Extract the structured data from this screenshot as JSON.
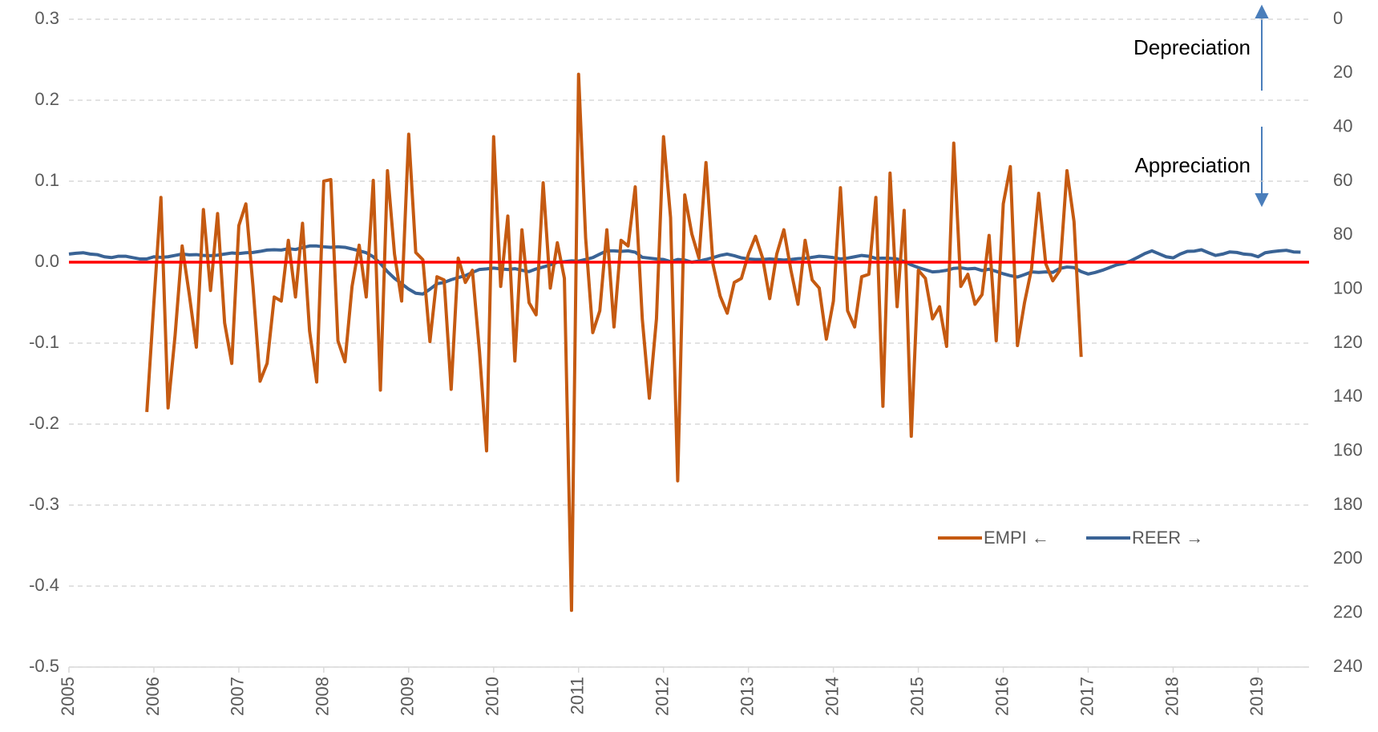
{
  "chart_data": {
    "type": "line",
    "x": [
      2005,
      2005.083,
      2005.167,
      2005.25,
      2005.333,
      2005.417,
      2005.5,
      2005.583,
      2005.667,
      2005.75,
      2005.833,
      2005.917,
      2006,
      2006.083,
      2006.167,
      2006.25,
      2006.333,
      2006.417,
      2006.5,
      2006.583,
      2006.667,
      2006.75,
      2006.833,
      2006.917,
      2007,
      2007.083,
      2007.167,
      2007.25,
      2007.333,
      2007.417,
      2007.5,
      2007.583,
      2007.667,
      2007.75,
      2007.833,
      2007.917,
      2008,
      2008.083,
      2008.167,
      2008.25,
      2008.333,
      2008.417,
      2008.5,
      2008.583,
      2008.667,
      2008.75,
      2008.833,
      2008.917,
      2009,
      2009.083,
      2009.167,
      2009.25,
      2009.333,
      2009.417,
      2009.5,
      2009.583,
      2009.667,
      2009.75,
      2009.833,
      2009.917,
      2010,
      2010.083,
      2010.167,
      2010.25,
      2010.333,
      2010.417,
      2010.5,
      2010.583,
      2010.667,
      2010.75,
      2010.833,
      2010.917,
      2011,
      2011.083,
      2011.167,
      2011.25,
      2011.333,
      2011.417,
      2011.5,
      2011.583,
      2011.667,
      2011.75,
      2011.833,
      2011.917,
      2012,
      2012.083,
      2012.167,
      2012.25,
      2012.333,
      2012.417,
      2012.5,
      2012.583,
      2012.667,
      2012.75,
      2012.833,
      2012.917,
      2013,
      2013.083,
      2013.167,
      2013.25,
      2013.333,
      2013.417,
      2013.5,
      2013.583,
      2013.667,
      2013.75,
      2013.833,
      2013.917,
      2014,
      2014.083,
      2014.167,
      2014.25,
      2014.333,
      2014.417,
      2014.5,
      2014.583,
      2014.667,
      2014.75,
      2014.833,
      2014.917,
      2015,
      2015.083,
      2015.167,
      2015.25,
      2015.333,
      2015.417,
      2015.5,
      2015.583,
      2015.667,
      2015.75,
      2015.833,
      2015.917,
      2016,
      2016.083,
      2016.167,
      2016.25,
      2016.333,
      2016.417,
      2016.5,
      2016.583,
      2016.667,
      2016.75,
      2016.833,
      2016.917,
      2017,
      2017.083,
      2017.167,
      2017.25,
      2017.333,
      2017.417,
      2017.5,
      2017.583,
      2017.667,
      2017.75,
      2017.833,
      2017.917,
      2018,
      2018.083,
      2018.167,
      2018.25,
      2018.333,
      2018.417,
      2018.5,
      2018.583,
      2018.667,
      2018.75,
      2018.833,
      2018.917,
      2019,
      2019.083,
      2019.167,
      2019.25,
      2019.333,
      2019.417,
      2019.5
    ],
    "series": [
      {
        "name": "EMPI ←",
        "color": "#c55a11",
        "axis": "y",
        "values": [
          null,
          null,
          null,
          null,
          null,
          null,
          null,
          null,
          null,
          null,
          null,
          -0.185,
          -0.05,
          0.08,
          -0.18,
          -0.09,
          0.02,
          -0.04,
          -0.105,
          0.065,
          -0.035,
          0.06,
          -0.075,
          -0.125,
          0.045,
          0.072,
          -0.03,
          -0.147,
          -0.125,
          -0.043,
          -0.048,
          0.027,
          -0.043,
          0.048,
          -0.085,
          -0.148,
          0.1,
          0.102,
          -0.097,
          -0.123,
          -0.03,
          0.021,
          -0.043,
          0.101,
          -0.158,
          0.113,
          0.01,
          -0.048,
          0.158,
          0.012,
          0.003,
          -0.098,
          -0.018,
          -0.022,
          -0.157,
          0.005,
          -0.025,
          -0.01,
          -0.11,
          -0.233,
          0.155,
          -0.03,
          0.057,
          -0.122,
          0.04,
          -0.05,
          -0.065,
          0.098,
          -0.032,
          0.024,
          -0.02,
          -0.43,
          0.232,
          0.03,
          -0.087,
          -0.06,
          0.04,
          -0.08,
          0.027,
          0.02,
          0.093,
          -0.07,
          -0.168,
          -0.07,
          0.155,
          0.055,
          -0.27,
          0.083,
          0.035,
          0.005,
          0.123,
          -0.003,
          -0.042,
          -0.063,
          -0.025,
          -0.02,
          0.01,
          0.032,
          0.005,
          -0.045,
          0.01,
          0.04,
          -0.01,
          -0.052,
          0.027,
          -0.022,
          -0.032,
          -0.095,
          -0.048,
          0.092,
          -0.06,
          -0.08,
          -0.018,
          -0.015,
          0.08,
          -0.178,
          0.11,
          -0.055,
          0.064,
          -0.215,
          -0.01,
          -0.02,
          -0.07,
          -0.055,
          -0.104,
          0.147,
          -0.03,
          -0.015,
          -0.052,
          -0.04,
          0.033,
          -0.097,
          0.072,
          0.118,
          -0.103,
          -0.05,
          -0.008,
          0.085,
          -0.002,
          -0.023,
          -0.01,
          0.113,
          0.05,
          -0.117,
          null,
          null,
          null,
          null,
          null,
          null,
          null,
          null,
          null,
          null,
          null,
          null,
          null,
          null,
          null,
          null,
          null,
          null,
          null,
          null,
          null,
          null,
          null,
          null,
          null,
          null,
          null,
          null,
          null,
          null,
          null
        ]
      },
      {
        "name": "REER →",
        "color": "#3a6395",
        "axis": "y2",
        "values": [
          87,
          86.7,
          86.5,
          87,
          87.2,
          88,
          88.3,
          87.8,
          87.8,
          88.3,
          88.8,
          88.8,
          88,
          88.2,
          88,
          87.5,
          87,
          87.3,
          87.2,
          87.5,
          87.6,
          87.4,
          87,
          86.6,
          86.8,
          86.5,
          86.4,
          86,
          85.5,
          85.4,
          85.5,
          85,
          85.3,
          84.6,
          84,
          84,
          84.3,
          84.5,
          84.3,
          84.5,
          85.1,
          85.8,
          86.5,
          88,
          90.5,
          93.5,
          96,
          98,
          100,
          101.5,
          101.8,
          100,
          98,
          97.5,
          96.5,
          95.7,
          95,
          93.8,
          92.7,
          92.5,
          92.2,
          92.5,
          92.7,
          92.4,
          93,
          93.5,
          92.5,
          91.8,
          91,
          90,
          89.8,
          89.5,
          89.6,
          89,
          88.3,
          87,
          85.8,
          85.8,
          86,
          85.8,
          86.3,
          88.2,
          88.5,
          88.8,
          89,
          89.8,
          89,
          89.2,
          90,
          89.6,
          89,
          88.3,
          87.5,
          87,
          87.6,
          88.4,
          88.8,
          89,
          89,
          88.8,
          89,
          89.2,
          89,
          88.7,
          88.6,
          88.2,
          87.8,
          88,
          88.3,
          88.8,
          88.5,
          88,
          87.5,
          87.8,
          88.6,
          88.5,
          88.6,
          88.8,
          89.8,
          91,
          92,
          92.8,
          93.6,
          93.4,
          93,
          92.3,
          92.1,
          92.5,
          92.3,
          93.1,
          92.6,
          93.4,
          94.3,
          95,
          95.5,
          94.6,
          93.6,
          93.8,
          93.6,
          93.8,
          92.3,
          91.8,
          92,
          93.5,
          94.4,
          93.8,
          93,
          92,
          91,
          90.5,
          89.5,
          88.2,
          86.8,
          85.8,
          86.9,
          88,
          88.4,
          87,
          86,
          85.9,
          85.4,
          86.5,
          87.5,
          87,
          86.2,
          86.4,
          87,
          87.2,
          88,
          86.5,
          86.1,
          85.8,
          85.6,
          86.2,
          86.3
        ]
      }
    ],
    "xlim": [
      2005,
      2019.6
    ],
    "xticks": [
      2005,
      2006,
      2007,
      2008,
      2009,
      2010,
      2011,
      2012,
      2013,
      2014,
      2015,
      2016,
      2017,
      2018,
      2019
    ],
    "ylim": [
      -0.5,
      0.3
    ],
    "yticks": [
      -0.5,
      -0.4,
      -0.3,
      -0.2,
      -0.1,
      {
        "value": 0,
        "label": "0.0"
      },
      0.1,
      0.2,
      0.3
    ],
    "y2lim": [
      0,
      240
    ],
    "y2_reversed": true,
    "y2ticks": [
      0,
      20,
      40,
      60,
      80,
      100,
      120,
      140,
      160,
      180,
      200,
      220,
      240
    ],
    "grid": true,
    "reference_line": {
      "value": 0,
      "color": "#ff0000"
    },
    "legend": "lower right",
    "annotations": [
      "Depreciation",
      "Appreciation"
    ]
  }
}
